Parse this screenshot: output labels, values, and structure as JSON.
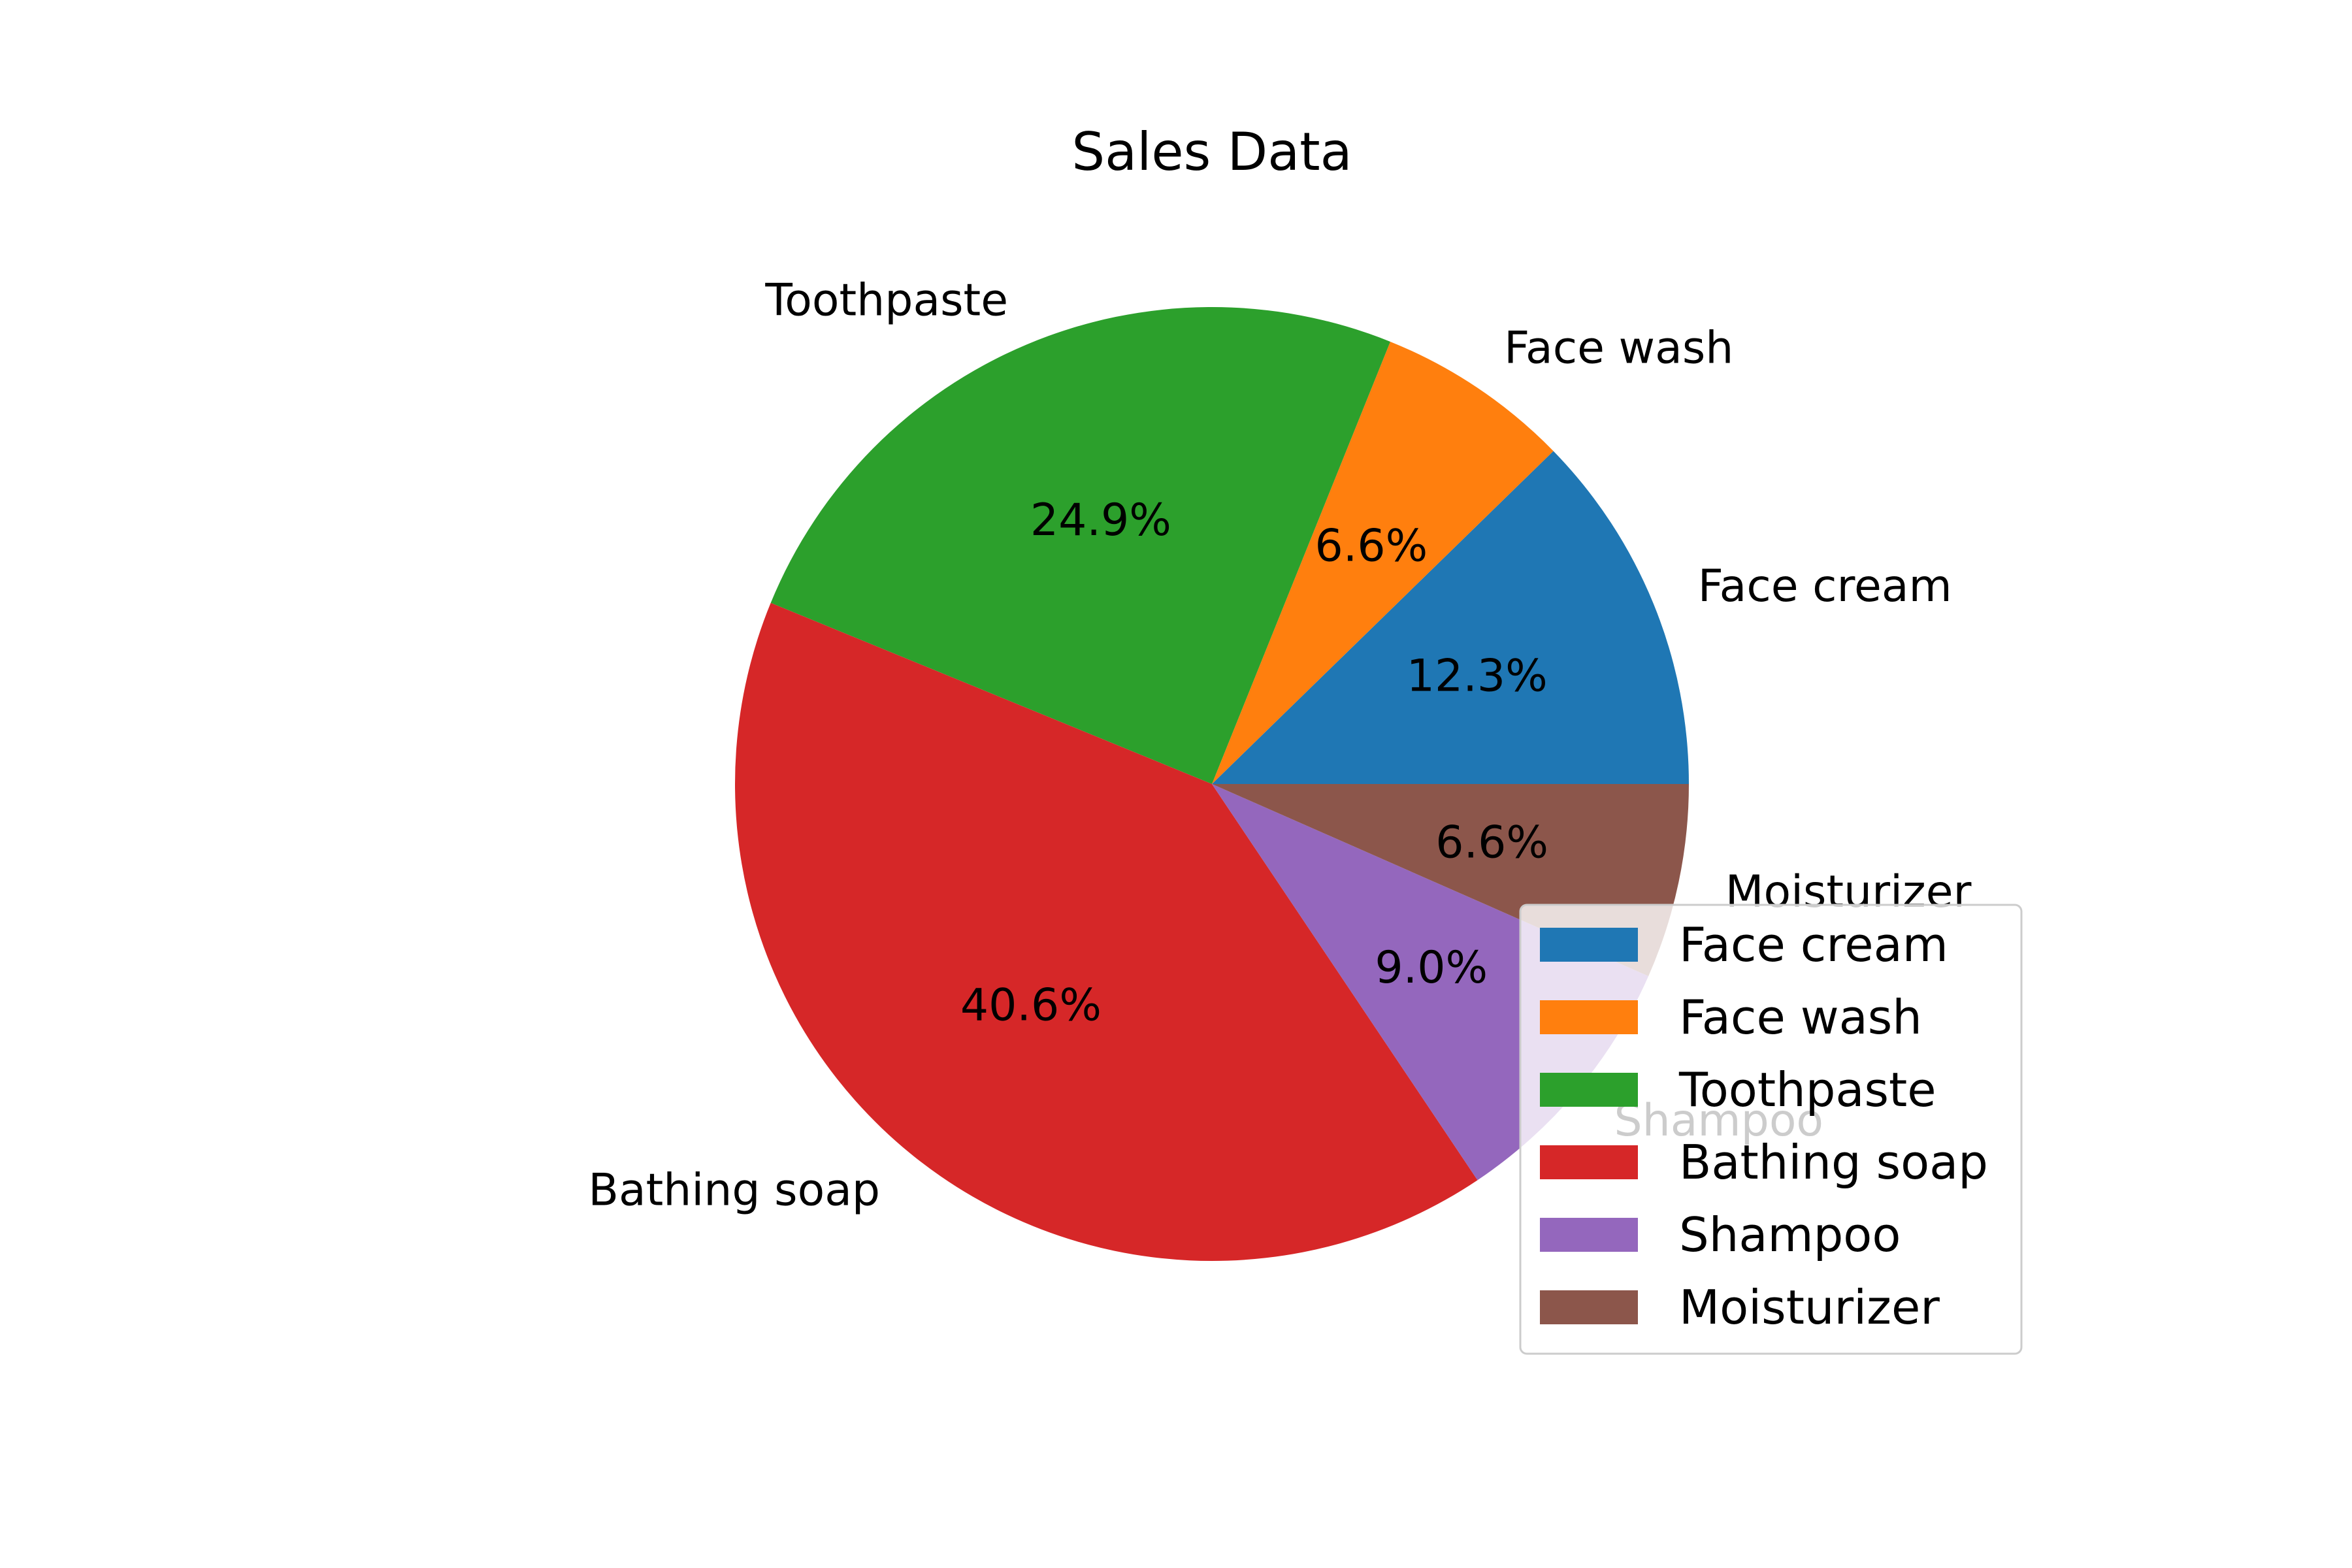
{
  "chart_data": {
    "type": "pie",
    "title": "Sales Data",
    "start_angle_deg": 0,
    "direction": "counterclockwise",
    "autopct_format": "%1.1f%%",
    "legend_position": "lower-right",
    "slices": [
      {
        "label": "Face cream",
        "value": 12.3,
        "pct_text": "12.3%",
        "color": "#1f77b4"
      },
      {
        "label": "Face wash",
        "value": 6.6,
        "pct_text": "6.6%",
        "color": "#ff7f0e"
      },
      {
        "label": "Toothpaste",
        "value": 24.9,
        "pct_text": "24.9%",
        "color": "#2ca02c"
      },
      {
        "label": "Bathing soap",
        "value": 40.6,
        "pct_text": "40.6%",
        "color": "#d62728"
      },
      {
        "label": "Shampoo",
        "value": 9.0,
        "pct_text": "9.0%",
        "color": "#9467bd"
      },
      {
        "label": "Moisturizer",
        "value": 6.6,
        "pct_text": "6.6%",
        "color": "#8c564b"
      }
    ]
  }
}
